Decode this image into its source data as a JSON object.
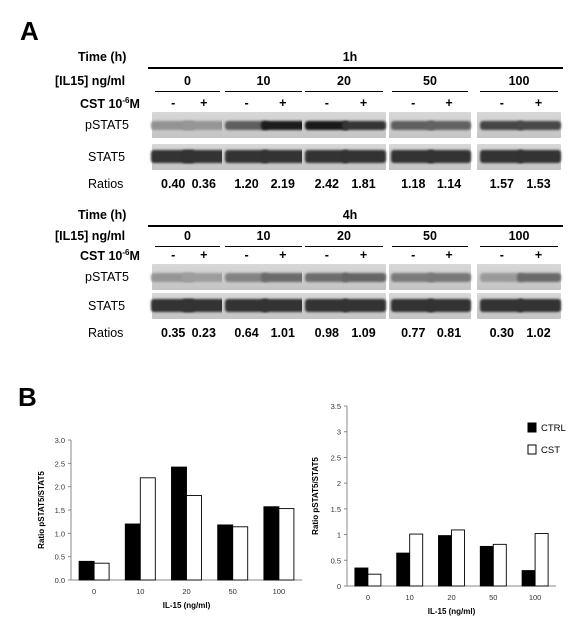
{
  "panel_a": {
    "letter": "A",
    "row_labels": {
      "time": "Time (h)",
      "il15": "[IL15] ng/ml",
      "cst": "CST 10",
      "cst_exp": "-6",
      "cst_unit": "M",
      "pstat5": "pSTAT5",
      "stat5": "STAT5",
      "ratios": "Ratios"
    },
    "blocks": [
      {
        "time": "1h",
        "concentrations": [
          "0",
          "10",
          "20",
          "50",
          "100"
        ],
        "signs": [
          "-",
          "+"
        ],
        "ratios": [
          "0.40",
          "0.36",
          "1.20",
          "2.19",
          "2.42",
          "1.81",
          "1.18",
          "1.14",
          "1.57",
          "1.53"
        ]
      },
      {
        "time": "4h",
        "concentrations": [
          "0",
          "10",
          "20",
          "50",
          "100"
        ],
        "signs": [
          "-",
          "+"
        ],
        "ratios": [
          "0.35",
          "0.23",
          "0.64",
          "1.01",
          "0.98",
          "1.09",
          "0.77",
          "0.81",
          "0.30",
          "1.02"
        ]
      }
    ]
  },
  "panel_b": {
    "letter": "B",
    "legend": {
      "ctrl": "CTRL",
      "cst": "CST"
    }
  },
  "chart_data": [
    {
      "type": "bar",
      "title": "",
      "xlabel": "IL-15 (ng/ml)",
      "ylabel": "Ratio pSTAT5/STAT5",
      "categories": [
        "0",
        "10",
        "20",
        "50",
        "100"
      ],
      "yticks": [
        "0.0",
        "0.5",
        "1.0",
        "1.5",
        "2.0",
        "2.5",
        "3.0"
      ],
      "ylim": [
        0,
        3.0
      ],
      "series": [
        {
          "name": "CTRL",
          "color": "#000000",
          "values": [
            0.4,
            1.2,
            2.42,
            1.18,
            1.57
          ]
        },
        {
          "name": "CST",
          "color": "#ffffff",
          "values": [
            0.36,
            2.19,
            1.81,
            1.14,
            1.53
          ]
        }
      ]
    },
    {
      "type": "bar",
      "title": "",
      "xlabel": "IL-15 (ng/ml)",
      "ylabel": "Ratio pSTAT5/STAT5",
      "categories": [
        "0",
        "10",
        "20",
        "50",
        "100"
      ],
      "yticks": [
        "0",
        "0.5",
        "1",
        "1.5",
        "2",
        "2.5",
        "3",
        "3.5"
      ],
      "ylim": [
        0,
        3.5
      ],
      "legend_position": "top-right",
      "series": [
        {
          "name": "CTRL",
          "color": "#000000",
          "values": [
            0.35,
            0.64,
            0.98,
            0.77,
            0.3
          ]
        },
        {
          "name": "CST",
          "color": "#ffffff",
          "values": [
            0.23,
            1.01,
            1.09,
            0.81,
            1.02
          ]
        }
      ]
    }
  ]
}
